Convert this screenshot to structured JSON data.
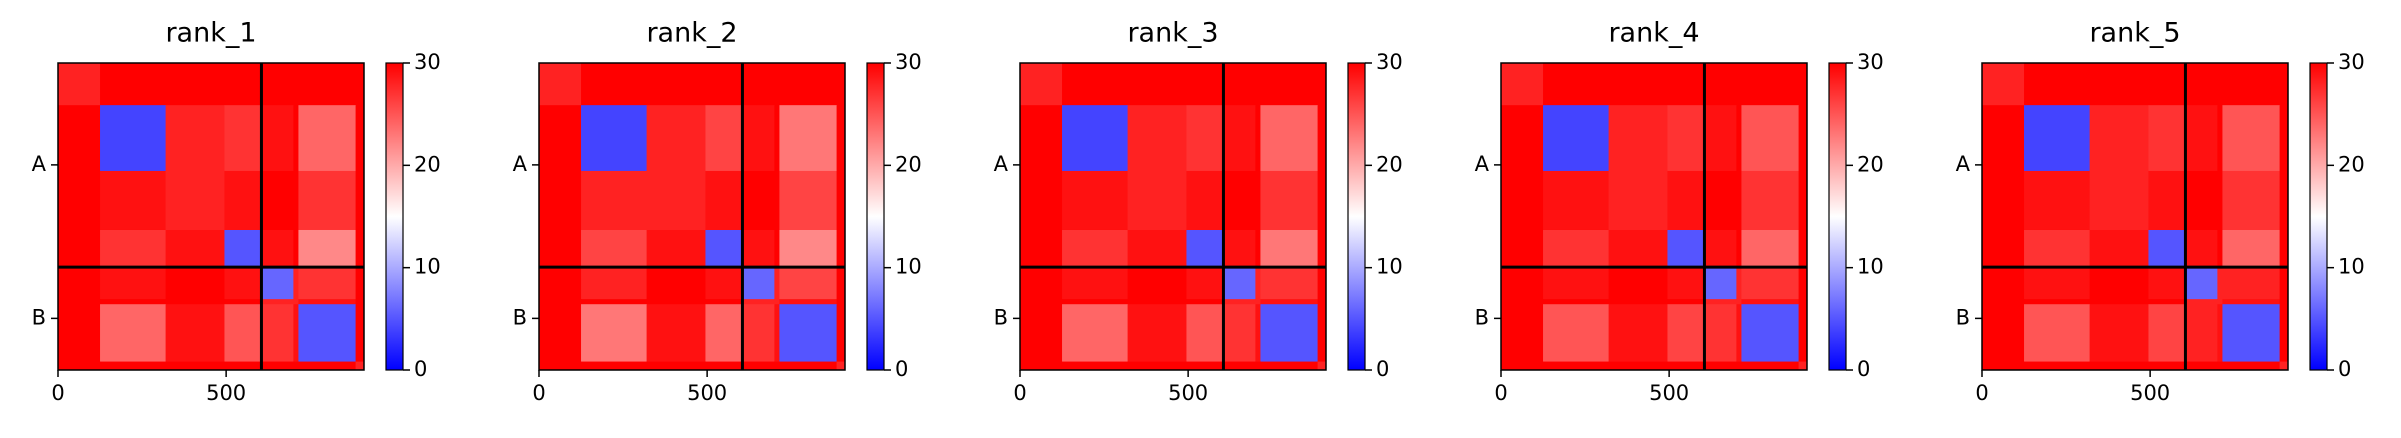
{
  "chart_data": [
    {
      "type": "heatmap",
      "title": "rank_1",
      "colormap": "bwr",
      "bins": [
        0,
        125,
        320,
        495,
        605,
        700,
        715,
        885,
        910
      ],
      "values": [
        [
          28,
          30,
          30,
          30,
          30,
          30,
          30,
          30
        ],
        [
          30,
          4,
          28,
          27,
          29,
          30,
          24,
          30
        ],
        [
          30,
          29,
          28,
          29,
          30,
          30,
          27,
          30
        ],
        [
          30,
          27,
          29,
          5,
          29,
          30,
          22,
          30
        ],
        [
          30,
          29,
          30,
          29,
          6,
          28,
          27,
          30
        ],
        [
          30,
          30,
          30,
          30,
          28,
          28,
          29,
          30
        ],
        [
          30,
          24,
          29,
          25,
          27,
          29,
          5,
          30
        ],
        [
          30,
          30,
          30,
          30,
          30,
          30,
          30,
          28
        ]
      ],
      "xlim": [
        0,
        910
      ],
      "ylim": [
        910,
        0
      ],
      "xticks": [
        0,
        500
      ],
      "yticks": [
        {
          "value": 302,
          "label": "A"
        },
        {
          "value": 757,
          "label": "B"
        }
      ],
      "chain_breaks": [
        605
      ],
      "clim": [
        0,
        30
      ],
      "cticks": [
        0,
        10,
        20,
        30
      ]
    },
    {
      "type": "heatmap",
      "title": "rank_2",
      "colormap": "bwr",
      "bins": [
        0,
        125,
        320,
        495,
        605,
        700,
        715,
        885,
        910
      ],
      "values": [
        [
          28,
          30,
          30,
          30,
          30,
          30,
          30,
          30
        ],
        [
          30,
          4,
          28,
          26,
          29,
          30,
          23,
          30
        ],
        [
          30,
          28,
          28,
          29,
          30,
          30,
          26,
          30
        ],
        [
          30,
          26,
          29,
          5,
          29,
          30,
          22,
          30
        ],
        [
          30,
          28,
          30,
          29,
          6,
          28,
          26,
          30
        ],
        [
          30,
          30,
          30,
          30,
          28,
          28,
          29,
          30
        ],
        [
          30,
          23,
          29,
          24,
          27,
          29,
          5,
          30
        ],
        [
          30,
          30,
          30,
          30,
          30,
          30,
          30,
          28
        ]
      ],
      "xlim": [
        0,
        910
      ],
      "ylim": [
        910,
        0
      ],
      "xticks": [
        0,
        500
      ],
      "yticks": [
        {
          "value": 302,
          "label": "A"
        },
        {
          "value": 757,
          "label": "B"
        }
      ],
      "chain_breaks": [
        605
      ],
      "clim": [
        0,
        30
      ],
      "cticks": [
        0,
        10,
        20,
        30
      ]
    },
    {
      "type": "heatmap",
      "title": "rank_3",
      "colormap": "bwr",
      "bins": [
        0,
        125,
        320,
        495,
        605,
        700,
        715,
        885,
        910
      ],
      "values": [
        [
          28,
          30,
          30,
          30,
          30,
          30,
          30,
          30
        ],
        [
          30,
          4,
          28,
          27,
          29,
          30,
          24,
          30
        ],
        [
          30,
          29,
          28,
          29,
          30,
          30,
          27,
          30
        ],
        [
          30,
          27,
          29,
          5,
          29,
          30,
          23,
          30
        ],
        [
          30,
          29,
          30,
          29,
          6,
          28,
          27,
          30
        ],
        [
          30,
          30,
          30,
          30,
          28,
          28,
          29,
          30
        ],
        [
          30,
          24,
          29,
          25,
          27,
          29,
          5,
          30
        ],
        [
          30,
          30,
          30,
          30,
          30,
          30,
          30,
          28
        ]
      ],
      "xlim": [
        0,
        910
      ],
      "ylim": [
        910,
        0
      ],
      "xticks": [
        0,
        500
      ],
      "yticks": [
        {
          "value": 302,
          "label": "A"
        },
        {
          "value": 757,
          "label": "B"
        }
      ],
      "chain_breaks": [
        605
      ],
      "clim": [
        0,
        30
      ],
      "cticks": [
        0,
        10,
        20,
        30
      ]
    },
    {
      "type": "heatmap",
      "title": "rank_4",
      "colormap": "bwr",
      "bins": [
        0,
        125,
        320,
        495,
        605,
        700,
        715,
        885,
        910
      ],
      "values": [
        [
          28,
          30,
          30,
          30,
          30,
          30,
          30,
          30
        ],
        [
          30,
          4,
          28,
          27,
          29,
          30,
          25,
          30
        ],
        [
          30,
          29,
          28,
          29,
          30,
          30,
          27,
          30
        ],
        [
          30,
          27,
          29,
          5,
          29,
          30,
          24,
          30
        ],
        [
          30,
          29,
          30,
          29,
          6,
          28,
          27,
          30
        ],
        [
          30,
          30,
          30,
          30,
          28,
          28,
          29,
          30
        ],
        [
          30,
          25,
          29,
          26,
          27,
          29,
          5,
          30
        ],
        [
          30,
          30,
          30,
          30,
          30,
          30,
          30,
          28
        ]
      ],
      "xlim": [
        0,
        910
      ],
      "ylim": [
        910,
        0
      ],
      "xticks": [
        0,
        500
      ],
      "yticks": [
        {
          "value": 302,
          "label": "A"
        },
        {
          "value": 757,
          "label": "B"
        }
      ],
      "chain_breaks": [
        605
      ],
      "clim": [
        0,
        30
      ],
      "cticks": [
        0,
        10,
        20,
        30
      ]
    },
    {
      "type": "heatmap",
      "title": "rank_5",
      "colormap": "bwr",
      "bins": [
        0,
        125,
        320,
        495,
        605,
        700,
        715,
        885,
        910
      ],
      "values": [
        [
          28,
          30,
          30,
          30,
          30,
          30,
          30,
          30
        ],
        [
          30,
          4,
          28,
          27,
          29,
          30,
          25,
          30
        ],
        [
          30,
          29,
          28,
          29,
          30,
          30,
          27,
          30
        ],
        [
          30,
          27,
          29,
          5,
          29,
          30,
          24,
          30
        ],
        [
          30,
          29,
          30,
          29,
          6,
          28,
          28,
          30
        ],
        [
          30,
          30,
          30,
          30,
          28,
          28,
          29,
          30
        ],
        [
          30,
          25,
          29,
          26,
          28,
          29,
          5,
          30
        ],
        [
          30,
          30,
          30,
          30,
          30,
          30,
          30,
          28
        ]
      ],
      "xlim": [
        0,
        910
      ],
      "ylim": [
        910,
        0
      ],
      "xticks": [
        0,
        500
      ],
      "yticks": [
        {
          "value": 302,
          "label": "A"
        },
        {
          "value": 757,
          "label": "B"
        }
      ],
      "chain_breaks": [
        605
      ],
      "clim": [
        0,
        30
      ],
      "cticks": [
        0,
        10,
        20,
        30
      ]
    }
  ]
}
